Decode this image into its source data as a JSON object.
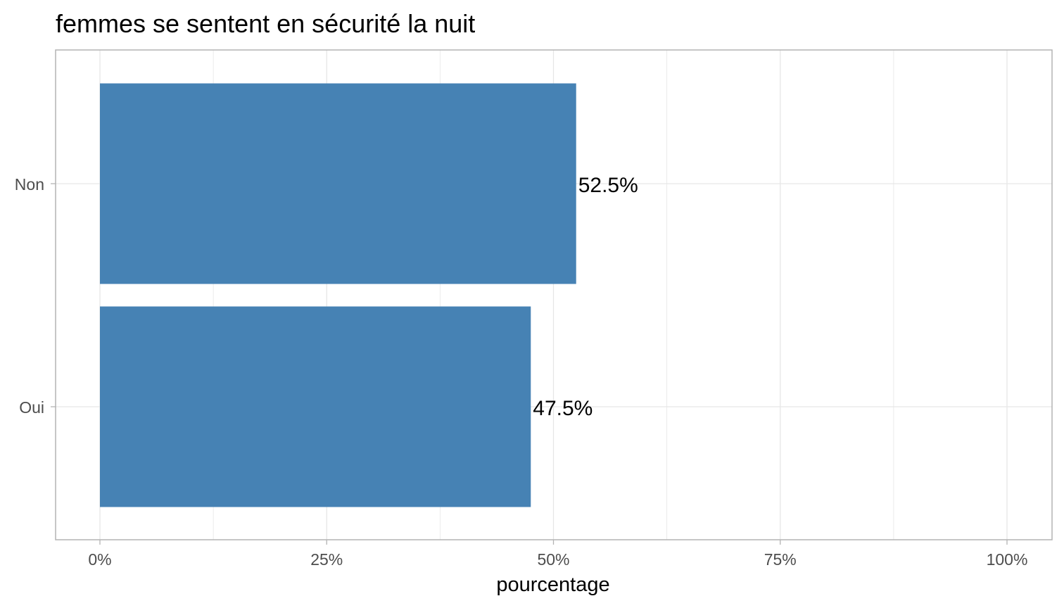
{
  "chart_data": {
    "type": "bar",
    "orientation": "horizontal",
    "title": "femmes se sentent en sécurité la nuit",
    "xlabel": "pourcentage",
    "ylabel": "",
    "categories": [
      "Non",
      "Oui"
    ],
    "values": [
      52.5,
      47.5
    ],
    "data_labels": [
      "52.5%",
      "47.5%"
    ],
    "xlim": [
      0,
      100
    ],
    "x_ticks": [
      0,
      25,
      50,
      75,
      100
    ],
    "x_tick_labels": [
      "0%",
      "25%",
      "50%",
      "75%",
      "100%"
    ],
    "grid": true,
    "legend": "none",
    "colors": {
      "bar": "#4682b4",
      "grid": "#e6e6e6",
      "panel_border": "#b3b3b3",
      "tick_text": "#4d4d4d"
    }
  }
}
